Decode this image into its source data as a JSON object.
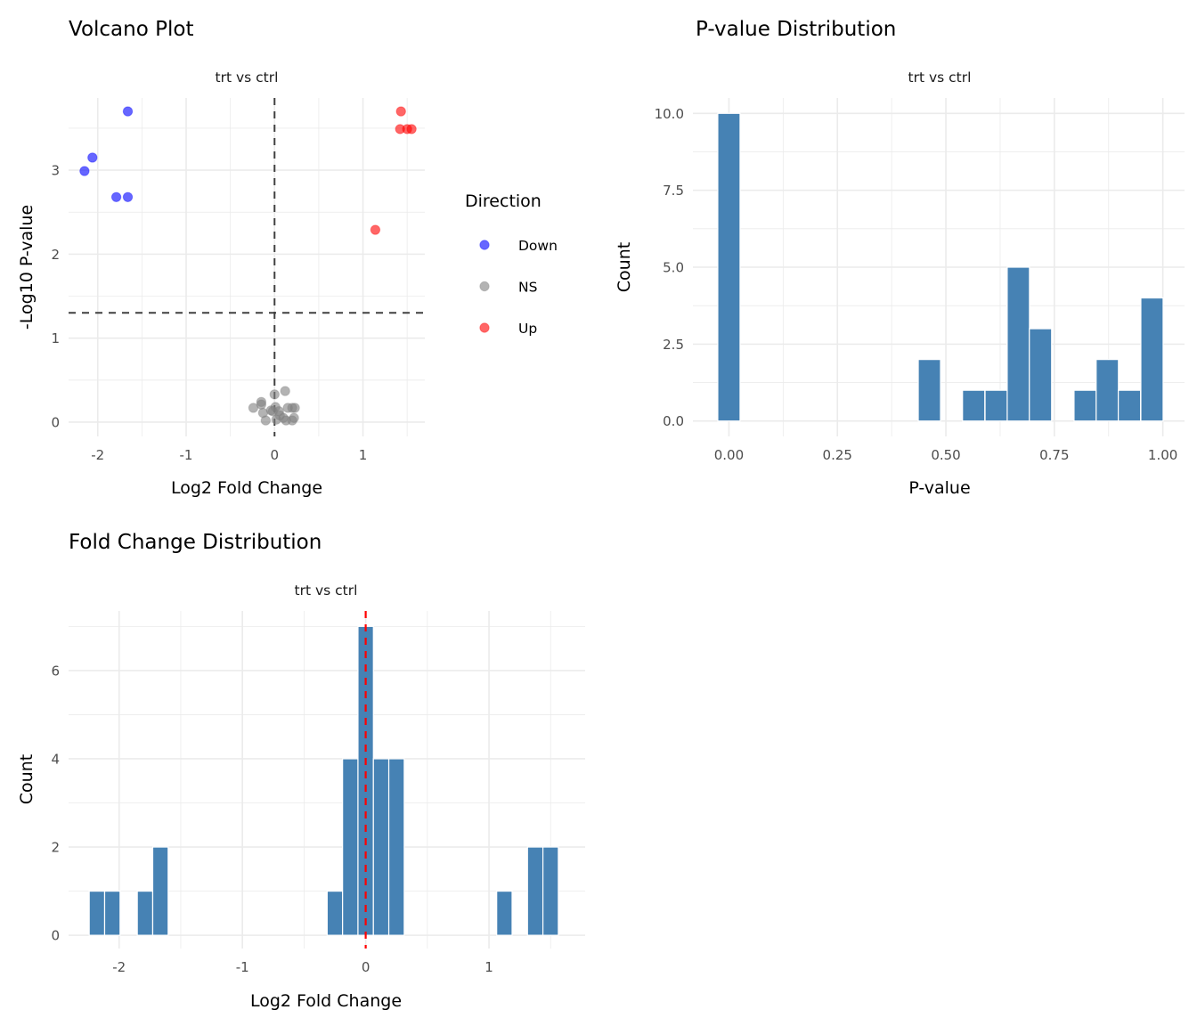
{
  "chart_data": [
    {
      "type": "scatter",
      "title": "Volcano Plot",
      "facet_label": "trt vs ctrl",
      "xlabel": "Log2 Fold Change",
      "ylabel": "-Log10 P-value",
      "xlim": [
        -2.33,
        1.7
      ],
      "ylim": [
        -0.17,
        3.86
      ],
      "xticks": [
        -2,
        -1,
        0,
        1
      ],
      "xtick_labels": [
        "-2",
        "-1",
        "0",
        "1"
      ],
      "yticks": [
        0,
        1,
        2,
        3
      ],
      "ytick_labels": [
        "0",
        "1",
        "2",
        "3"
      ],
      "grid": true,
      "reference_lines": {
        "vertical_x": 0,
        "horizontal_y": 1.301,
        "style": "dashed",
        "color": "#404040"
      },
      "legend": {
        "title": "Direction",
        "placement": "right",
        "entries": [
          {
            "label": "Down",
            "color": "#0000FF"
          },
          {
            "label": "NS",
            "color": "#808080"
          },
          {
            "label": "Up",
            "color": "#FF0000"
          }
        ]
      },
      "series": [
        {
          "name": "Down",
          "color": "#0000FF",
          "points": [
            {
              "x": -1.66,
              "y": 3.7
            },
            {
              "x": -2.06,
              "y": 3.15
            },
            {
              "x": -2.15,
              "y": 2.99
            },
            {
              "x": -1.79,
              "y": 2.68
            },
            {
              "x": -1.66,
              "y": 2.68
            }
          ]
        },
        {
          "name": "NS",
          "color": "#808080",
          "points": [
            {
              "x": 0.12,
              "y": 0.37
            },
            {
              "x": 0.0,
              "y": 0.33
            },
            {
              "x": -0.24,
              "y": 0.17
            },
            {
              "x": -0.15,
              "y": 0.24
            },
            {
              "x": -0.15,
              "y": 0.21
            },
            {
              "x": -0.13,
              "y": 0.11
            },
            {
              "x": -0.1,
              "y": 0.02
            },
            {
              "x": -0.04,
              "y": 0.14
            },
            {
              "x": 0.01,
              "y": 0.18
            },
            {
              "x": 0.05,
              "y": 0.13
            },
            {
              "x": 0.02,
              "y": 0.03
            },
            {
              "x": 0.06,
              "y": 0.08
            },
            {
              "x": 0.15,
              "y": 0.17
            },
            {
              "x": 0.2,
              "y": 0.17
            },
            {
              "x": 0.23,
              "y": 0.17
            },
            {
              "x": 0.13,
              "y": 0.02
            },
            {
              "x": 0.2,
              "y": 0.02
            },
            {
              "x": 0.22,
              "y": 0.05
            },
            {
              "x": -0.02,
              "y": 0.13
            },
            {
              "x": 0.1,
              "y": 0.05
            }
          ]
        },
        {
          "name": "Up",
          "color": "#FF0000",
          "points": [
            {
              "x": 1.43,
              "y": 3.7
            },
            {
              "x": 1.42,
              "y": 3.49
            },
            {
              "x": 1.5,
              "y": 3.49
            },
            {
              "x": 1.55,
              "y": 3.49
            },
            {
              "x": 1.14,
              "y": 2.29
            }
          ]
        }
      ]
    },
    {
      "type": "bar",
      "subtype": "histogram",
      "title": "P-value Distribution",
      "facet_label": "trt vs ctrl",
      "xlabel": "P-value",
      "ylabel": "Count",
      "xlim": [
        -0.083,
        1.05
      ],
      "ylim": [
        -0.5,
        10.5
      ],
      "xticks": [
        0,
        0.25,
        0.5,
        0.75,
        1.0
      ],
      "xtick_labels": [
        "0.00",
        "0.25",
        "0.50",
        "0.75",
        "1.00"
      ],
      "yticks": [
        0,
        2.5,
        5,
        7.5,
        10
      ],
      "ytick_labels": [
        "0.0",
        "2.5",
        "5.0",
        "7.5",
        "10.0"
      ],
      "grid": true,
      "bar_color": "#4682B4",
      "bin_width": 0.0513,
      "bins": [
        {
          "center": 0.0,
          "count": 10
        },
        {
          "center": 0.462,
          "count": 2
        },
        {
          "center": 0.564,
          "count": 1
        },
        {
          "center": 0.616,
          "count": 1
        },
        {
          "center": 0.667,
          "count": 5
        },
        {
          "center": 0.718,
          "count": 3
        },
        {
          "center": 0.821,
          "count": 1
        },
        {
          "center": 0.872,
          "count": 2
        },
        {
          "center": 0.923,
          "count": 1
        },
        {
          "center": 0.975,
          "count": 4
        }
      ]
    },
    {
      "type": "bar",
      "subtype": "histogram",
      "title": "Fold Change Distribution",
      "facet_label": "trt vs ctrl",
      "xlabel": "Log2 Fold Change",
      "ylabel": "Count",
      "xlim": [
        -2.41,
        1.78
      ],
      "ylim": [
        -0.3,
        7.35
      ],
      "xticks": [
        -2,
        -1,
        0,
        1
      ],
      "xtick_labels": [
        "-2",
        "-1",
        "0",
        "1"
      ],
      "yticks": [
        0,
        2,
        4,
        6
      ],
      "ytick_labels": [
        "0",
        "2",
        "4",
        "6"
      ],
      "grid": true,
      "bar_color": "#4682B4",
      "bin_width": 0.125,
      "reference_line": {
        "x": 0,
        "style": "dashed",
        "color": "#FF0000"
      },
      "bins": [
        {
          "center": -2.18,
          "count": 1
        },
        {
          "center": -2.055,
          "count": 1
        },
        {
          "center": -1.79,
          "count": 1
        },
        {
          "center": -1.665,
          "count": 2
        },
        {
          "center": -0.25,
          "count": 1
        },
        {
          "center": -0.125,
          "count": 4
        },
        {
          "center": 0.0,
          "count": 7
        },
        {
          "center": 0.125,
          "count": 4
        },
        {
          "center": 0.25,
          "count": 4
        },
        {
          "center": 1.125,
          "count": 1
        },
        {
          "center": 1.375,
          "count": 2
        },
        {
          "center": 1.5,
          "count": 2
        }
      ]
    }
  ]
}
